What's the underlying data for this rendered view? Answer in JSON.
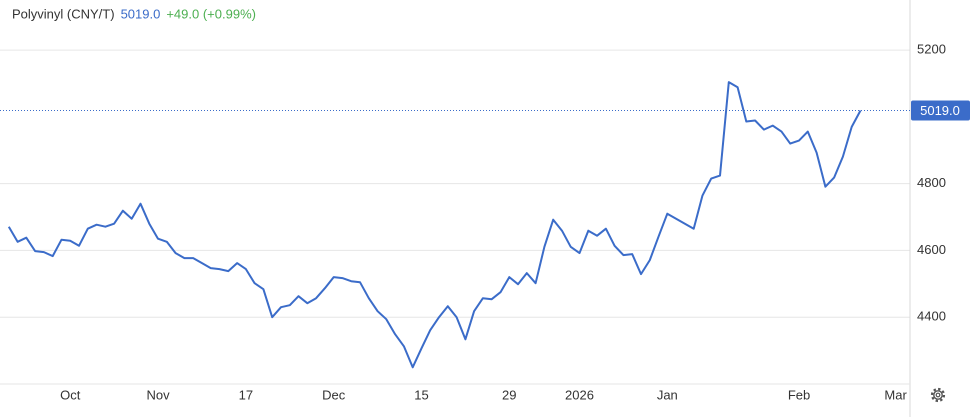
{
  "chart_data": {
    "type": "line",
    "title": "Polyvinyl (CNY/T)",
    "change": "+49.0 (+0.99%)",
    "price_label": {
      "value": 5019,
      "label": "5019.0"
    },
    "x": [
      0,
      1,
      2,
      3,
      4,
      5,
      6,
      7,
      8,
      9,
      10,
      11,
      12,
      13,
      14,
      15,
      16,
      17,
      18,
      19,
      20,
      21,
      22,
      23,
      24,
      25,
      26,
      27,
      28,
      29,
      30,
      31,
      32,
      33,
      34,
      35,
      36,
      37,
      38,
      39,
      40,
      41,
      42,
      43,
      44,
      45,
      46,
      47,
      48,
      49,
      50,
      51,
      52,
      53,
      54,
      55,
      56,
      57,
      58,
      59,
      60,
      61,
      62,
      63,
      64,
      65,
      66,
      67,
      68,
      69,
      70,
      71,
      72,
      73,
      74,
      75,
      76,
      77,
      78,
      79,
      80,
      81,
      82,
      83,
      84,
      85,
      86,
      87,
      88,
      89,
      90,
      91,
      92,
      93,
      94,
      95,
      96,
      97
    ],
    "series": [
      {
        "name": "Polyvinyl",
        "color": "#3b6cc9",
        "values": [
          4671,
          4626,
          4638,
          4598,
          4595,
          4583,
          4632,
          4629,
          4614,
          4665,
          4677,
          4671,
          4680,
          4719,
          4695,
          4740,
          4680,
          4635,
          4626,
          4592,
          4577,
          4577,
          4562,
          4547,
          4544,
          4538,
          4562,
          4544,
          4502,
          4484,
          4400,
          4430,
          4436,
          4463,
          4442,
          4457,
          4487,
          4520,
          4517,
          4508,
          4505,
          4457,
          4418,
          4394,
          4349,
          4313,
          4250,
          4307,
          4361,
          4400,
          4433,
          4400,
          4334,
          4418,
          4457,
          4454,
          4475,
          4520,
          4499,
          4532,
          4502,
          4611,
          4692,
          4659,
          4611,
          4592,
          4659,
          4644,
          4665,
          4614,
          4586,
          4589,
          4529,
          4571,
          4641,
          4710,
          4695,
          4680,
          4665,
          4764,
          4815,
          4824,
          5104,
          5089,
          4986,
          4989,
          4962,
          4974,
          4956,
          4920,
          4929,
          4956,
          4893,
          4791,
          4818,
          4881,
          4970,
          5019
        ]
      }
    ],
    "xlim": [
      -1,
      101.5
    ],
    "xticks": [
      {
        "value": 7,
        "label": "Oct"
      },
      {
        "value": 17,
        "label": "Nov"
      },
      {
        "value": 27,
        "label": "17"
      },
      {
        "value": 37,
        "label": "Dec"
      },
      {
        "value": 47,
        "label": "15"
      },
      {
        "value": 57,
        "label": "29"
      },
      {
        "value": 65,
        "label": "2026"
      },
      {
        "value": 75,
        "label": "Jan"
      },
      {
        "value": 90,
        "label": "Feb"
      },
      {
        "value": 101,
        "label": "Mar"
      }
    ],
    "ylim": [
      4200,
      5350
    ],
    "yticks": [
      4400,
      4600,
      4800,
      5200
    ],
    "grid": true
  }
}
